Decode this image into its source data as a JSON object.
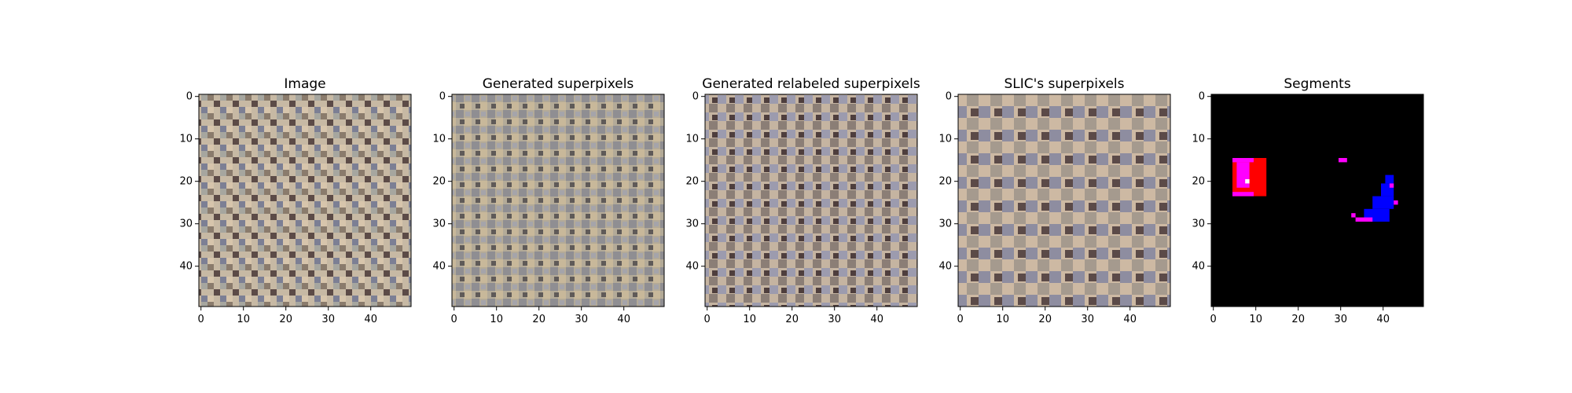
{
  "panels": [
    {
      "id": "image",
      "title": "Image"
    },
    {
      "id": "generated",
      "title": "Generated superpixels"
    },
    {
      "id": "relabeled",
      "title": "Generated relabeled superpixels"
    },
    {
      "id": "slic",
      "title": "SLIC's superpixels"
    },
    {
      "id": "segments",
      "title": "Segments"
    }
  ],
  "axes": {
    "xticks": [
      "0",
      "10",
      "20",
      "30",
      "40"
    ],
    "yticks": [
      "0",
      "10",
      "20",
      "30",
      "40"
    ],
    "xlim": [
      -0.5,
      49.5
    ],
    "ylim": [
      49.5,
      -0.5
    ]
  },
  "colors": {
    "segment_background": "#000000",
    "segment_red": "#ff0000",
    "segment_magenta": "#ff00ff",
    "segment_blue": "#0000ff",
    "segment_white": "#ffffff"
  }
}
